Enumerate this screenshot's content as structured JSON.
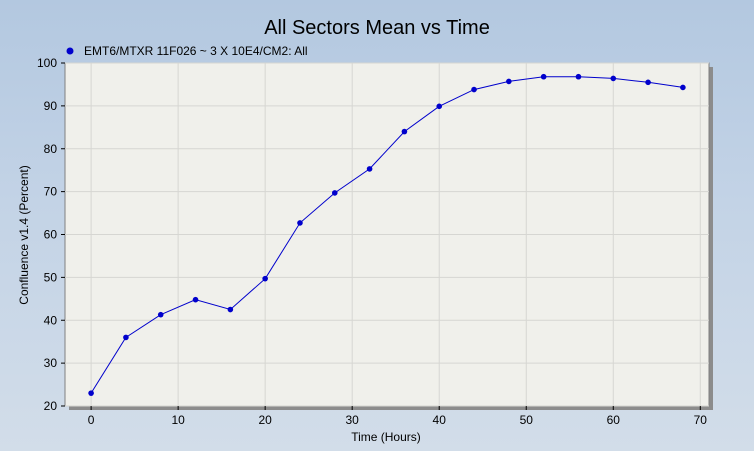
{
  "chart_data": {
    "type": "line",
    "title": "All Sectors Mean vs Time",
    "xlabel": "Time (Hours)",
    "ylabel": "Confluence v1.4 (Percent)",
    "xlim": [
      -3,
      71
    ],
    "ylim": [
      20,
      100
    ],
    "xticks": [
      0,
      10,
      20,
      30,
      40,
      50,
      60,
      70
    ],
    "yticks": [
      20,
      30,
      40,
      50,
      60,
      70,
      80,
      90,
      100
    ],
    "grid": true,
    "legend_position": "top-left",
    "series": [
      {
        "name": "EMT6/MTXR 11F026 ~ 3 X 10E4/CM2: All",
        "color": "#0000cc",
        "x": [
          0,
          4,
          8,
          12,
          16,
          20,
          24,
          28,
          32,
          36,
          40,
          44,
          48,
          52,
          56,
          60,
          64,
          68
        ],
        "y": [
          23,
          36,
          41.3,
          44.8,
          42.5,
          49.7,
          62.7,
          69.7,
          75.3,
          84,
          89.9,
          93.8,
          95.7,
          96.8,
          96.8,
          96.4,
          95.5,
          94.3
        ]
      }
    ]
  }
}
